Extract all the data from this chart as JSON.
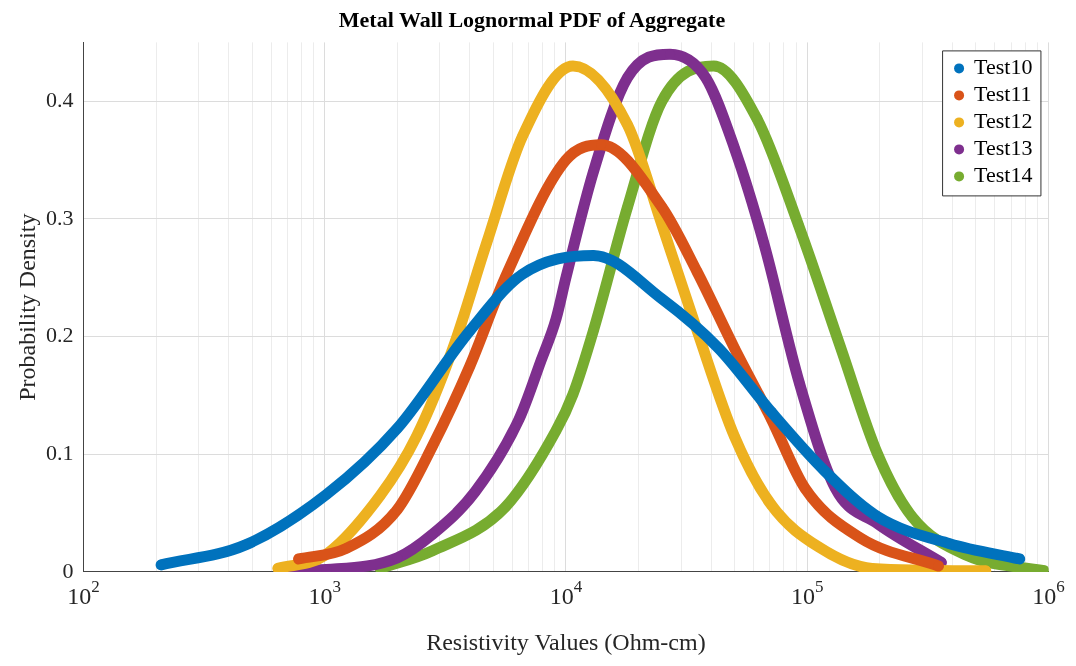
{
  "chart_data": {
    "type": "line",
    "title": "Metal Wall Lognormal PDF of Aggregate",
    "xlabel": "Resistivity Values (Ohm-cm)",
    "ylabel": "Probability Density",
    "log": "x",
    "grid": true,
    "legend": "top right",
    "marker": "circle",
    "xlim": [
      100,
      1000000
    ],
    "ylim": [
      0,
      0.45
    ],
    "xticks": [
      {
        "value": 100,
        "label": "10$^{2}$"
      },
      {
        "value": 200,
        "label": null
      },
      {
        "value": 300,
        "label": null
      },
      {
        "value": 400,
        "label": null
      },
      {
        "value": 500,
        "label": null
      },
      {
        "value": 600,
        "label": null
      },
      {
        "value": 700,
        "label": null
      },
      {
        "value": 800,
        "label": null
      },
      {
        "value": 900,
        "label": null
      },
      {
        "value": 1000,
        "label": "10$^{3}$"
      },
      {
        "value": 2000,
        "label": null
      },
      {
        "value": 3000,
        "label": null
      },
      {
        "value": 4000,
        "label": null
      },
      {
        "value": 5000,
        "label": null
      },
      {
        "value": 6000,
        "label": null
      },
      {
        "value": 7000,
        "label": null
      },
      {
        "value": 8000,
        "label": null
      },
      {
        "value": 9000,
        "label": null
      },
      {
        "value": 10000,
        "label": "10$^{4}$"
      },
      {
        "value": 20000,
        "label": null
      },
      {
        "value": 30000,
        "label": null
      },
      {
        "value": 40000,
        "label": null
      },
      {
        "value": 50000,
        "label": null
      },
      {
        "value": 60000,
        "label": null
      },
      {
        "value": 70000,
        "label": null
      },
      {
        "value": 80000,
        "label": null
      },
      {
        "value": 90000,
        "label": null
      },
      {
        "value": 100000,
        "label": "10$^{5}$"
      },
      {
        "value": 200000,
        "label": null
      },
      {
        "value": 300000,
        "label": null
      },
      {
        "value": 400000,
        "label": null
      },
      {
        "value": 500000,
        "label": null
      },
      {
        "value": 600000,
        "label": null
      },
      {
        "value": 700000,
        "label": null
      },
      {
        "value": 800000,
        "label": null
      },
      {
        "value": 900000,
        "label": null
      },
      {
        "value": 1000000,
        "label": "10$^{6}$"
      }
    ],
    "yticks": [
      0,
      0.1,
      0.2,
      0.3,
      0.4
    ],
    "series": [
      {
        "name": "Test10",
        "color": "#0072bd",
        "x": [
          210,
          470,
          1020,
          2000,
          4000,
          6600,
          13000,
          25000,
          43000,
          71000,
          118000,
          196000,
          390000,
          760000
        ],
        "values": [
          0.006,
          0.023,
          0.066,
          0.122,
          0.205,
          0.253,
          0.269,
          0.232,
          0.19,
          0.136,
          0.086,
          0.047,
          0.024,
          0.011
        ]
      },
      {
        "name": "Test11",
        "color": "#d95319",
        "x": [
          780,
          1230,
          2000,
          2800,
          4000,
          5600,
          10000,
          14000,
          25000,
          35000,
          50000,
          71000,
          98000,
          166000,
          350000
        ],
        "values": [
          0.011,
          0.02,
          0.053,
          0.107,
          0.175,
          0.25,
          0.35,
          0.363,
          0.31,
          0.255,
          0.19,
          0.13,
          0.071,
          0.029,
          0.005
        ]
      },
      {
        "name": "Test12",
        "color": "#edb120",
        "x": [
          640,
          1000,
          1700,
          2400,
          3400,
          4700,
          6600,
          10700,
          18000,
          25000,
          35000,
          50000,
          71000,
          112000,
          186000,
          550000
        ],
        "values": [
          0.003,
          0.014,
          0.065,
          0.115,
          0.19,
          0.28,
          0.37,
          0.43,
          0.38,
          0.295,
          0.205,
          0.115,
          0.057,
          0.021,
          0.003,
          0.001
        ]
      },
      {
        "name": "Test13",
        "color": "#7e2f8e",
        "x": [
          670,
          1020,
          2000,
          2800,
          4200,
          6400,
          7900,
          9100,
          10000,
          13000,
          18000,
          27000,
          38000,
          50000,
          66000,
          93000,
          131000,
          196000,
          360000
        ],
        "values": [
          0.001,
          0.002,
          0.012,
          0.032,
          0.068,
          0.13,
          0.18,
          0.215,
          0.25,
          0.34,
          0.42,
          0.44,
          0.42,
          0.36,
          0.28,
          0.16,
          0.071,
          0.041,
          0.008
        ]
      },
      {
        "name": "Test14",
        "color": "#77ac30",
        "x": [
          1700,
          2800,
          5600,
          9100,
          10700,
          13000,
          18000,
          25000,
          41000,
          62000,
          92000,
          138000,
          196000,
          272000,
          460000,
          960000
        ],
        "values": [
          0.003,
          0.018,
          0.055,
          0.12,
          0.151,
          0.205,
          0.31,
          0.4,
          0.43,
          0.385,
          0.295,
          0.19,
          0.1,
          0.047,
          0.014,
          0.001
        ]
      }
    ]
  }
}
